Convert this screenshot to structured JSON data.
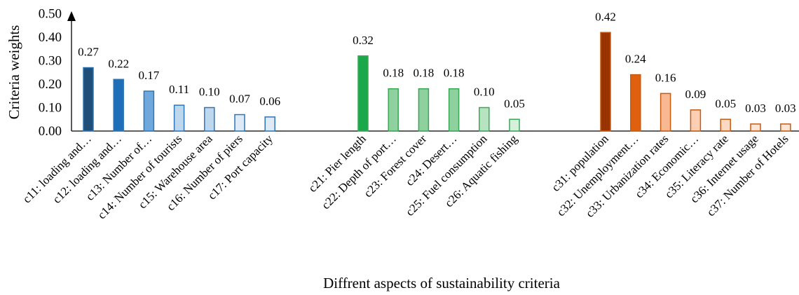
{
  "chart_data": {
    "type": "bar",
    "title": "",
    "xlabel": "Diffrent aspects of sustainability criteria",
    "ylabel": "Criteria weights",
    "ylim": [
      0,
      0.5
    ],
    "yticks": [
      "0.00",
      "0.10",
      "0.20",
      "0.30",
      "0.40",
      "0.50"
    ],
    "grid": false,
    "legend": "none",
    "groups": [
      {
        "categories": [
          "c11: loading and…",
          "c12: loading and…",
          "c13: Number of…",
          "c14: Number of tourists",
          "c15: Warehouse area",
          "c16: Number of piers",
          "c17: Port capacity"
        ],
        "values": [
          0.27,
          0.22,
          0.17,
          0.11,
          0.1,
          0.07,
          0.06
        ],
        "labels": [
          "0.27",
          "0.22",
          "0.17",
          "0.11",
          "0.10",
          "0.07",
          "0.06"
        ],
        "fills": [
          "#1f4e79",
          "#1f6fb8",
          "#6fa8dc",
          "#bdd7ee",
          "#bdd7ee",
          "#deebf7",
          "#deebf7"
        ],
        "stroke": "#2e75b6"
      },
      {
        "categories": [
          "c21: Pier length",
          "c22: Depth of port…",
          "c23: Forest cover",
          "c24: Desert…",
          "c25: Fuel consumption",
          "c26: Aquatic fishing"
        ],
        "values": [
          0.32,
          0.18,
          0.18,
          0.18,
          0.1,
          0.05
        ],
        "labels": [
          "0.32",
          "0.18",
          "0.18",
          "0.18",
          "0.10",
          "0.05"
        ],
        "fills": [
          "#1aa84a",
          "#8fd19e",
          "#8fd19e",
          "#8fd19e",
          "#b7e4c0",
          "#d6f0dc"
        ],
        "stroke": "#3aa757"
      },
      {
        "categories": [
          "c31: population",
          "c32: Unemployment…",
          "c33: Urbanization rates",
          "c34: Economic…",
          "c35: Literacy rate",
          "c36: Internet usage",
          "c37: Number of Hotels"
        ],
        "values": [
          0.42,
          0.24,
          0.16,
          0.09,
          0.05,
          0.03,
          0.03
        ],
        "labels": [
          "0.42",
          "0.24",
          "0.16",
          "0.09",
          "0.05",
          "0.03",
          "0.03"
        ],
        "fills": [
          "#993300",
          "#e0600f",
          "#f8b891",
          "#fbcfb3",
          "#fbd9c4",
          "#fde4d5",
          "#fde4d5"
        ],
        "stroke": "#c55a11"
      }
    ]
  }
}
